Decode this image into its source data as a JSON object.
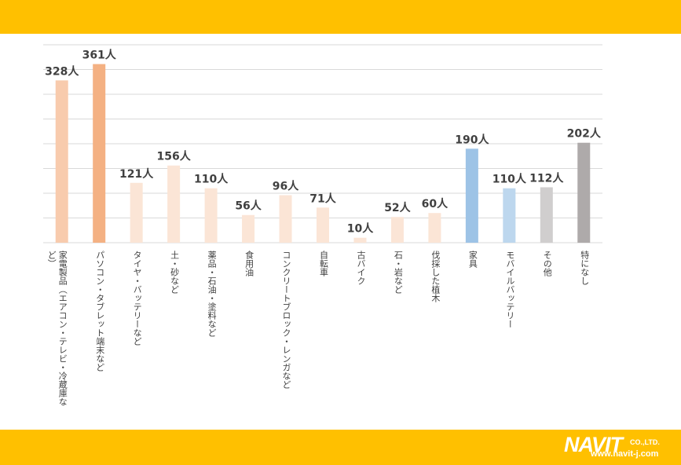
{
  "chart_data": {
    "type": "bar",
    "value_suffix": "人",
    "ylim": [
      0,
      400
    ],
    "grid": true,
    "categories": [
      "家電製品（エアコン・テレビ・冷蔵庫など）",
      "パソコン・タブレット端末など",
      "タイヤ・バッテリーなど",
      "土・砂など",
      "薬品・石油・塗料など",
      "食用油",
      "コンクリートブロック・レンガなど",
      "自転車",
      "古バイク",
      "石・岩など",
      "伐採した植木",
      "家具",
      "モバイルバッテリー",
      "その他",
      "特になし"
    ],
    "label_lines": [
      [
        "家電製品（エアコン・テレビ・冷蔵庫な",
        "ど）"
      ],
      [
        "パソコン・タブレット端末など"
      ],
      [
        "タイヤ・バッテリーなど"
      ],
      [
        "土・砂など"
      ],
      [
        "薬品・石油・塗料など"
      ],
      [
        "食用油"
      ],
      [
        "コンクリートブロック・レンガなど"
      ],
      [
        "自転車"
      ],
      [
        "古バイク"
      ],
      [
        "石・岩など"
      ],
      [
        "伐採した植木"
      ],
      [
        "家具"
      ],
      [
        "モバイルバッテリー"
      ],
      [
        "その他"
      ],
      [
        "特になし"
      ]
    ],
    "values": [
      328,
      361,
      121,
      156,
      110,
      56,
      96,
      71,
      10,
      52,
      60,
      190,
      110,
      112,
      202
    ],
    "data_labels": [
      "328人",
      "361人",
      "121人",
      "156人",
      "110人",
      "56人",
      "96人",
      "71人",
      "10人",
      "52人",
      "60人",
      "190人",
      "110人",
      "112人",
      "202人"
    ],
    "colors": [
      "#f8cbad",
      "#f4b183",
      "#fbe5d6",
      "#fbe5d6",
      "#fbe5d6",
      "#fbe5d6",
      "#fbe5d6",
      "#fbe5d6",
      "#fbe5d6",
      "#fbe5d6",
      "#fbe5d6",
      "#9dc3e6",
      "#bdd7ee",
      "#d0cece",
      "#aeaaaa"
    ]
  },
  "logo": {
    "name": "NAVIT",
    "suffix": "CO.,LTD.",
    "url": "www.navit-j.com"
  },
  "colors": {
    "band": "#ffc000",
    "grid": "#d9d9d9",
    "label_text": "#404040"
  }
}
